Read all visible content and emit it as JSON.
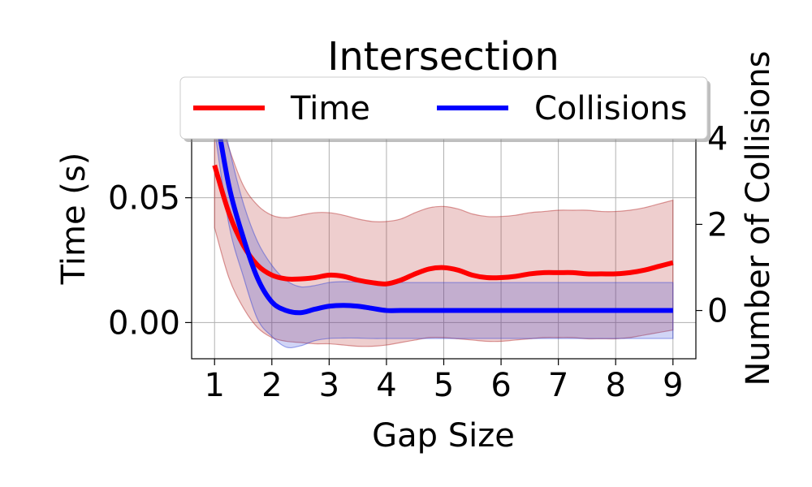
{
  "chart_data": {
    "type": "line",
    "title": "Intersection",
    "xlabel": "Gap Size",
    "ylabel_left": "Time (s)",
    "ylabel_right": "Number of Collisions",
    "xlim": [
      0.6,
      9.4
    ],
    "ylim_left": [
      -0.0145,
      0.098
    ],
    "ylim_right": [
      -1.12,
      5.4
    ],
    "x_ticks": [
      "1",
      "2",
      "3",
      "4",
      "5",
      "6",
      "7",
      "8",
      "9"
    ],
    "y_ticks_left": [
      "0.00",
      "0.05"
    ],
    "y_ticks_right": [
      "0",
      "2",
      "4"
    ],
    "grid": true,
    "legend_placement": "upper-center",
    "x": [
      1,
      1.25,
      1.5,
      1.75,
      2,
      2.25,
      2.5,
      2.75,
      3,
      3.25,
      3.5,
      3.75,
      4,
      4.25,
      4.5,
      4.75,
      5,
      5.25,
      5.5,
      5.75,
      6,
      6.25,
      6.5,
      6.75,
      7,
      7.25,
      7.5,
      7.75,
      8,
      8.25,
      8.5,
      8.75,
      9
    ],
    "series": [
      {
        "name": "Time",
        "axis": "left",
        "color": "#ff0000",
        "band_color": "#b22222",
        "values": [
          0.063,
          0.044,
          0.031,
          0.023,
          0.019,
          0.0175,
          0.0175,
          0.018,
          0.019,
          0.0185,
          0.017,
          0.016,
          0.0155,
          0.017,
          0.0195,
          0.0215,
          0.022,
          0.021,
          0.019,
          0.018,
          0.018,
          0.0185,
          0.0195,
          0.02,
          0.02,
          0.02,
          0.0195,
          0.0195,
          0.0195,
          0.02,
          0.021,
          0.0225,
          0.024
        ],
        "upper": [
          0.088,
          0.07,
          0.055,
          0.047,
          0.043,
          0.042,
          0.043,
          0.044,
          0.044,
          0.043,
          0.0415,
          0.0405,
          0.0405,
          0.0415,
          0.044,
          0.046,
          0.0465,
          0.0455,
          0.0435,
          0.0425,
          0.0425,
          0.043,
          0.044,
          0.0445,
          0.045,
          0.045,
          0.045,
          0.0445,
          0.0445,
          0.045,
          0.046,
          0.0475,
          0.049
        ],
        "lower": [
          0.038,
          0.018,
          0.006,
          -0.002,
          -0.006,
          -0.0075,
          -0.008,
          -0.0085,
          -0.0085,
          -0.009,
          -0.0095,
          -0.0095,
          -0.009,
          -0.008,
          -0.007,
          -0.006,
          -0.006,
          -0.0065,
          -0.007,
          -0.0075,
          -0.0075,
          -0.007,
          -0.0065,
          -0.006,
          -0.006,
          -0.006,
          -0.0065,
          -0.0065,
          -0.0065,
          -0.006,
          -0.005,
          -0.004,
          -0.003
        ]
      },
      {
        "name": "Collisions",
        "axis": "right",
        "color": "#0000ff",
        "band_color": "#2d3fd6",
        "values": [
          4.8,
          2.9,
          1.7,
          0.75,
          0.2,
          0.0,
          -0.05,
          0.03,
          0.1,
          0.12,
          0.1,
          0.05,
          0.0,
          0.0,
          0.0,
          0.0,
          0.0,
          0.0,
          0.0,
          0.0,
          0.0,
          0.0,
          0.0,
          0.0,
          0.0,
          0.0,
          0.0,
          0.0,
          0.0,
          0.0,
          0.0,
          0.0,
          0.0
        ],
        "upper": [
          5.4,
          3.8,
          2.5,
          1.6,
          1.05,
          0.7,
          0.55,
          0.58,
          0.65,
          0.67,
          0.66,
          0.65,
          0.65,
          0.65,
          0.65,
          0.65,
          0.65,
          0.65,
          0.65,
          0.65,
          0.65,
          0.65,
          0.65,
          0.65,
          0.65,
          0.65,
          0.65,
          0.65,
          0.65,
          0.65,
          0.65,
          0.65,
          0.65
        ],
        "lower": [
          4.2,
          2.0,
          0.8,
          -0.2,
          -0.6,
          -0.85,
          -0.82,
          -0.7,
          -0.65,
          -0.64,
          -0.64,
          -0.65,
          -0.65,
          -0.65,
          -0.65,
          -0.65,
          -0.65,
          -0.65,
          -0.65,
          -0.65,
          -0.65,
          -0.65,
          -0.65,
          -0.65,
          -0.65,
          -0.65,
          -0.65,
          -0.65,
          -0.65,
          -0.65,
          -0.65,
          -0.65,
          -0.65
        ]
      }
    ]
  }
}
